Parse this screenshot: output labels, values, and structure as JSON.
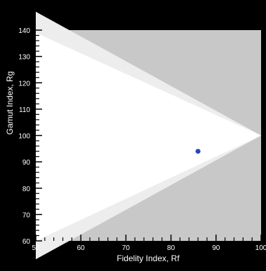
{
  "chart_data": {
    "type": "scatter",
    "title": "",
    "xlabel": "Fidelity Index, Rf",
    "ylabel": "Gamut Index, Rg",
    "xlim": [
      50,
      100
    ],
    "ylim": [
      60,
      140
    ],
    "xticks": [
      "50",
      "60",
      "70",
      "80",
      "90",
      "100"
    ],
    "yticks": [
      "60",
      "70",
      "80",
      "90",
      "100",
      "110",
      "120",
      "130",
      "140"
    ],
    "points": [
      {
        "x": 86,
        "y": 94
      }
    ],
    "background_regions": [
      {
        "role": "outside-gamut-limit",
        "color": "#c8c8c8"
      },
      {
        "role": "intermediate-band",
        "color": "#ededed"
      },
      {
        "role": "valid-region",
        "color": "#ffffff"
      }
    ],
    "colors": {
      "background": "#000000",
      "text": "#ffffff",
      "point": "#2a46b8",
      "axis": "#000000"
    },
    "grid": false,
    "legend": "none"
  }
}
